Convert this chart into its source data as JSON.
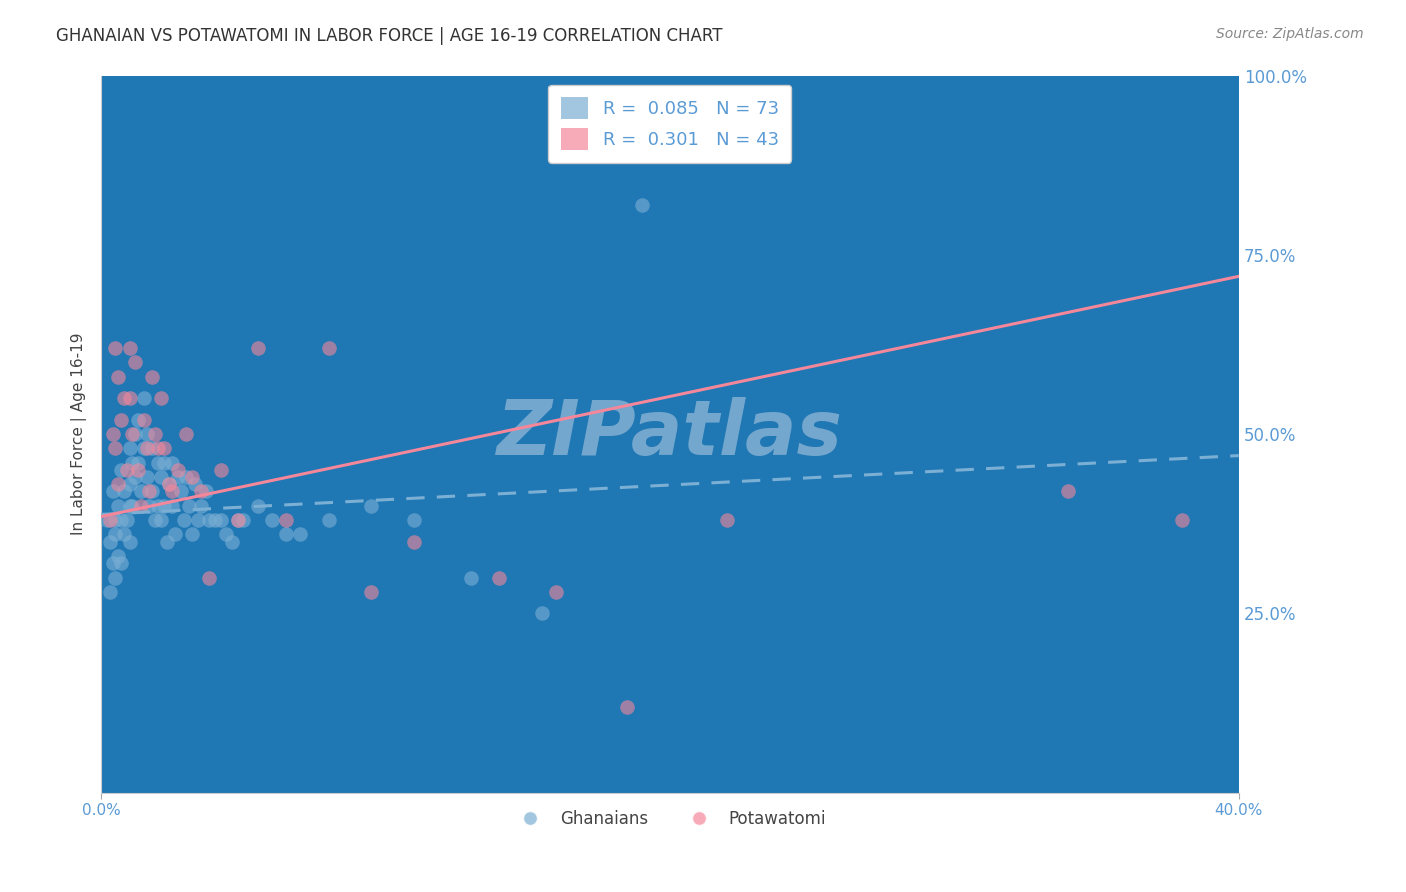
{
  "title": "GHANAIAN VS POTAWATOMI IN LABOR FORCE | AGE 16-19 CORRELATION CHART",
  "source": "Source: ZipAtlas.com",
  "ylabel": "In Labor Force | Age 16-19",
  "xlim": [
    0.0,
    0.4
  ],
  "ylim": [
    0.0,
    1.0
  ],
  "yticks_right": [
    0.0,
    0.25,
    0.5,
    0.75,
    1.0
  ],
  "yticklabels_right": [
    "",
    "25.0%",
    "50.0%",
    "75.0%",
    "100.0%"
  ],
  "ghanaian_color": "#7BAFD4",
  "potawatomi_color": "#F4879A",
  "ghanaian_R": 0.085,
  "ghanaian_N": 73,
  "potawatomi_R": 0.301,
  "potawatomi_N": 43,
  "watermark": "ZIPatlas",
  "background_color": "#ffffff",
  "grid_color": "#cccccc",
  "legend_label_blue": "Ghanaians",
  "legend_label_pink": "Potawatomi",
  "tick_color": "#5b9bd5",
  "ghanaian_scatter_x": [
    0.002,
    0.003,
    0.003,
    0.004,
    0.004,
    0.005,
    0.005,
    0.005,
    0.006,
    0.006,
    0.007,
    0.007,
    0.007,
    0.008,
    0.008,
    0.009,
    0.01,
    0.01,
    0.01,
    0.01,
    0.011,
    0.011,
    0.012,
    0.012,
    0.013,
    0.013,
    0.014,
    0.015,
    0.015,
    0.016,
    0.016,
    0.017,
    0.018,
    0.018,
    0.019,
    0.02,
    0.02,
    0.021,
    0.021,
    0.022,
    0.022,
    0.023,
    0.024,
    0.025,
    0.025,
    0.026,
    0.027,
    0.028,
    0.029,
    0.03,
    0.031,
    0.032,
    0.033,
    0.034,
    0.035,
    0.037,
    0.038,
    0.04,
    0.042,
    0.044,
    0.046,
    0.048,
    0.05,
    0.055,
    0.06,
    0.065,
    0.07,
    0.08,
    0.095,
    0.11,
    0.13,
    0.155,
    0.19
  ],
  "ghanaian_scatter_y": [
    0.38,
    0.35,
    0.28,
    0.42,
    0.32,
    0.38,
    0.36,
    0.3,
    0.4,
    0.33,
    0.45,
    0.38,
    0.32,
    0.42,
    0.36,
    0.38,
    0.48,
    0.43,
    0.4,
    0.35,
    0.46,
    0.4,
    0.5,
    0.44,
    0.52,
    0.46,
    0.42,
    0.55,
    0.48,
    0.5,
    0.44,
    0.4,
    0.48,
    0.42,
    0.38,
    0.46,
    0.4,
    0.44,
    0.38,
    0.46,
    0.4,
    0.35,
    0.43,
    0.46,
    0.4,
    0.36,
    0.44,
    0.42,
    0.38,
    0.44,
    0.4,
    0.36,
    0.43,
    0.38,
    0.4,
    0.42,
    0.38,
    0.38,
    0.38,
    0.36,
    0.35,
    0.38,
    0.38,
    0.4,
    0.38,
    0.36,
    0.36,
    0.38,
    0.4,
    0.38,
    0.3,
    0.25,
    0.82
  ],
  "potawatomi_scatter_x": [
    0.003,
    0.004,
    0.005,
    0.005,
    0.006,
    0.006,
    0.007,
    0.008,
    0.009,
    0.01,
    0.01,
    0.011,
    0.012,
    0.013,
    0.014,
    0.015,
    0.016,
    0.017,
    0.018,
    0.019,
    0.02,
    0.021,
    0.022,
    0.024,
    0.025,
    0.027,
    0.03,
    0.032,
    0.035,
    0.038,
    0.042,
    0.048,
    0.055,
    0.065,
    0.08,
    0.095,
    0.11,
    0.14,
    0.16,
    0.185,
    0.22,
    0.34,
    0.38
  ],
  "potawatomi_scatter_y": [
    0.38,
    0.5,
    0.62,
    0.48,
    0.58,
    0.43,
    0.52,
    0.55,
    0.45,
    0.62,
    0.55,
    0.5,
    0.6,
    0.45,
    0.4,
    0.52,
    0.48,
    0.42,
    0.58,
    0.5,
    0.48,
    0.55,
    0.48,
    0.43,
    0.42,
    0.45,
    0.5,
    0.44,
    0.42,
    0.3,
    0.45,
    0.38,
    0.62,
    0.38,
    0.62,
    0.28,
    0.35,
    0.3,
    0.28,
    0.12,
    0.38,
    0.42,
    0.38
  ],
  "blue_trend_x0": 0.0,
  "blue_trend_x1": 0.4,
  "blue_trend_y0": 0.388,
  "blue_trend_y1": 0.47,
  "pink_trend_x0": 0.0,
  "pink_trend_x1": 0.4,
  "pink_trend_y0": 0.385,
  "pink_trend_y1": 0.72
}
